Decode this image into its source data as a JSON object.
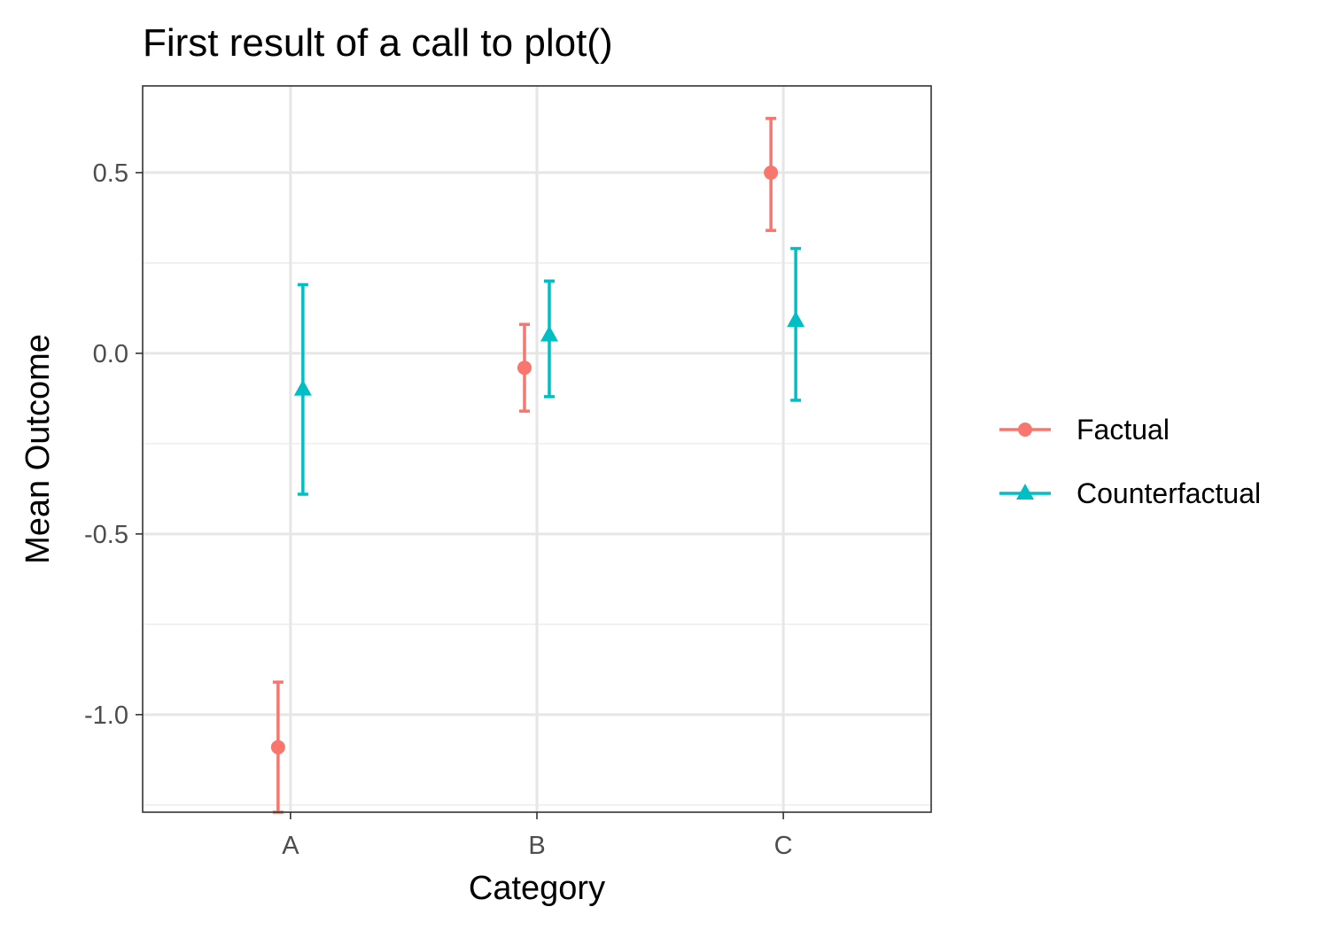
{
  "chart_data": {
    "type": "scatter",
    "title": "First result of a call to plot()",
    "xlabel": "Category",
    "ylabel": "Mean Outcome",
    "categories": [
      "A",
      "B",
      "C"
    ],
    "ylim": [
      -1.27,
      0.74
    ],
    "yticks": [
      -1.0,
      -0.5,
      0.0,
      0.5
    ],
    "ytick_labels": [
      "-1.0",
      "-0.5",
      "0.0",
      "0.5"
    ],
    "grid": true,
    "legend_position": "right",
    "series": [
      {
        "name": "Factual",
        "color": "#F8766D",
        "marker": "circle",
        "values": [
          -1.09,
          -0.04,
          0.5
        ],
        "lower": [
          -1.27,
          -0.16,
          0.34
        ],
        "upper": [
          -0.91,
          0.08,
          0.65
        ]
      },
      {
        "name": "Counterfactual",
        "color": "#00BFC4",
        "marker": "triangle",
        "values": [
          -0.1,
          0.05,
          0.09
        ],
        "lower": [
          -0.39,
          -0.12,
          -0.13
        ],
        "upper": [
          0.19,
          0.2,
          0.29
        ]
      }
    ]
  }
}
